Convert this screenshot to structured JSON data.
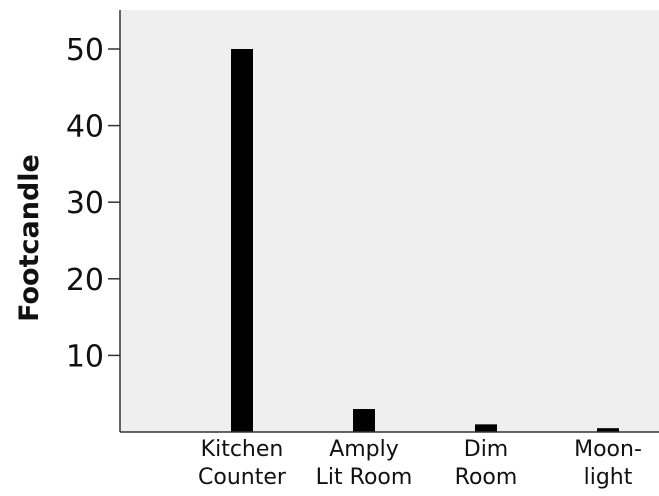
{
  "chart_data": {
    "type": "bar",
    "categories": [
      [
        "Kitchen",
        "Counter"
      ],
      [
        "Amply",
        "Lit Room"
      ],
      [
        "Dim",
        "Room"
      ],
      [
        "Moon-",
        "light"
      ]
    ],
    "values": [
      50,
      3,
      1,
      0.5
    ],
    "xlabel": "",
    "ylabel": "Footcandle",
    "yticks": [
      "10",
      "20",
      "30",
      "40",
      "50"
    ],
    "ylim": [
      0,
      55
    ],
    "grid": false,
    "legend": "none",
    "colors": {
      "bar": "#000000",
      "plot_background": "#efefef",
      "axis": "#333333"
    }
  }
}
